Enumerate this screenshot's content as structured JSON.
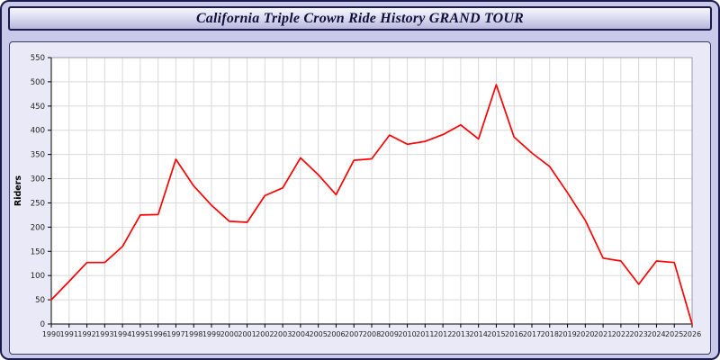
{
  "window": {
    "title": "California Triple Crown Ride History GRAND TOUR"
  },
  "colors": {
    "page_bg": "#c9c9ea",
    "panel_bg": "#e9e9f7",
    "frame_border": "#1a1a4e",
    "grid": "#d9d9d9",
    "axis": "#000000",
    "tick_text": "#222222",
    "line": "#ff0000"
  },
  "chart_data": {
    "type": "line",
    "title": "California Triple Crown Ride History GRAND TOUR",
    "xlabel": "",
    "ylabel": "Riders",
    "x": [
      1990,
      1991,
      1992,
      1993,
      1994,
      1995,
      1996,
      1997,
      1998,
      1999,
      2000,
      2001,
      2002,
      2003,
      2004,
      2005,
      2006,
      2007,
      2008,
      2009,
      2010,
      2011,
      2012,
      2013,
      2014,
      2015,
      2016,
      2017,
      2018,
      2019,
      2020,
      2021,
      2022,
      2023,
      2024,
      2025,
      2026
    ],
    "values": [
      50,
      88,
      127,
      127,
      160,
      225,
      226,
      340,
      285,
      245,
      212,
      210,
      265,
      281,
      343,
      308,
      267,
      338,
      341,
      390,
      371,
      377,
      391,
      411,
      382,
      494,
      386,
      353,
      325,
      271,
      214,
      136,
      130,
      82,
      130,
      127,
      0
    ],
    "ylim": [
      0,
      550
    ],
    "ytick_step": 50,
    "line_color": "#ff0000",
    "grid": true,
    "legend_position": "none"
  }
}
